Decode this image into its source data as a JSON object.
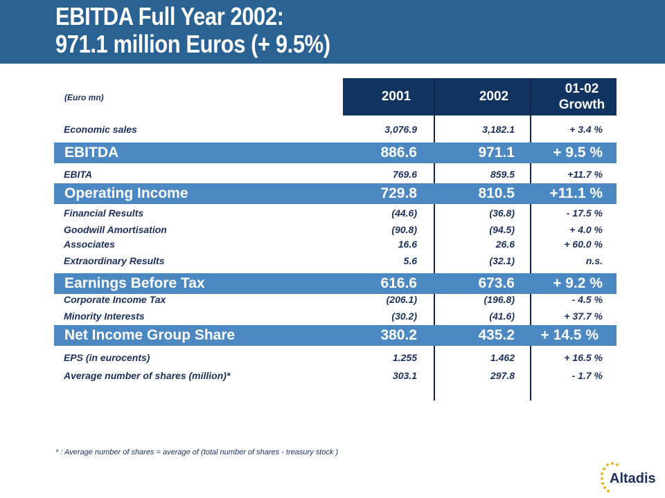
{
  "title": {
    "line1": "EBITDA Full  Year 2002:",
    "line2": "971.1 million Euros (+ 9.5%)"
  },
  "unit": "(Euro mn)",
  "columns": [
    "2001",
    "2002",
    "01-02",
    "Growth"
  ],
  "rows": [
    {
      "label": "Economic sales",
      "v2001": "3,076.9",
      "v2002": "3,182.1",
      "growth": "+ 3.4 %"
    },
    {
      "label": "EBITDA",
      "v2001": "886.6",
      "v2002": "971.1",
      "growth": "+ 9.5 %"
    },
    {
      "label": "EBITA",
      "v2001": "769.6",
      "v2002": "859.5",
      "growth": "+11.7 %"
    },
    {
      "label": "Operating Income",
      "v2001": "729.8",
      "v2002": "810.5",
      "growth": "+11.1 %"
    },
    {
      "label": "Financial Results",
      "v2001": "(44.6)",
      "v2002": "(36.8)",
      "growth": "- 17.5 %"
    },
    {
      "label": "Goodwill Amortisation",
      "v2001": "(90.8)",
      "v2002": "(94.5)",
      "growth": "+ 4.0 %"
    },
    {
      "label": "Associates",
      "v2001": "16.6",
      "v2002": "26.6",
      "growth": "+ 60.0 %"
    },
    {
      "label": "Extraordinary Results",
      "v2001": "5.6",
      "v2002": "(32.1)",
      "growth": "n.s."
    },
    {
      "label": "Earnings Before Tax",
      "v2001": "616.6",
      "v2002": "673.6",
      "growth": "+ 9.2 %"
    },
    {
      "label": "Corporate Income Tax",
      "v2001": "(206.1)",
      "v2002": "(196.8)",
      "growth": "- 4.5 %"
    },
    {
      "label": "Minority Interests",
      "v2001": "(30.2)",
      "v2002": "(41.6)",
      "growth": "+ 37.7 %"
    },
    {
      "label": "Net Income Group Share",
      "v2001": "380.2",
      "v2002": "435.2",
      "growth": "+ 14.5 %"
    },
    {
      "label": "EPS (in eurocents)",
      "v2001": "1.255",
      "v2002": "1.462",
      "growth": "+ 16.5 %"
    },
    {
      "label": "Average number of shares (million)*",
      "v2001": "303.1",
      "v2002": "297.8",
      "growth": "- 1.7 %"
    }
  ],
  "footnote": "* : Average number of shares = average of (total number of shares - treasury stock )",
  "logo_text": "Altadis",
  "colors": {
    "header": "#2a6293",
    "column_header": "#10335f",
    "highlight_band": "#4c88c2",
    "text": "#1b2f5a"
  }
}
